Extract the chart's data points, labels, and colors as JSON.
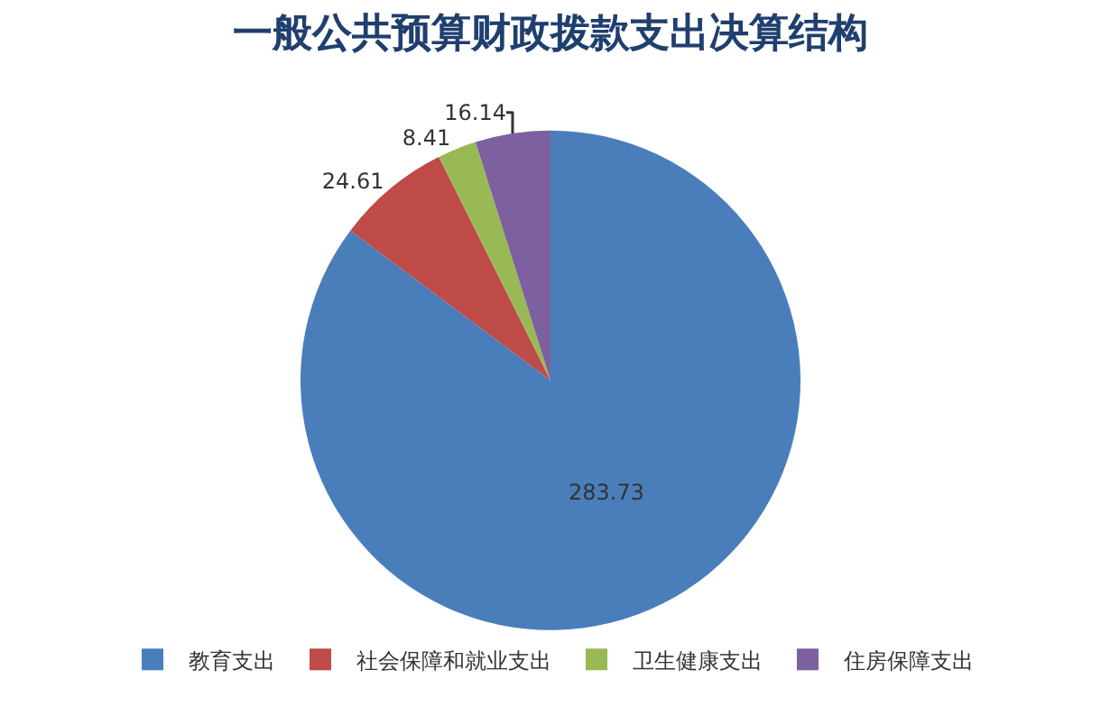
{
  "chart_data": {
    "type": "pie",
    "title": "一般公共预算财政拨款支出决算结构",
    "categories": [
      "教育支出",
      "社会保障和就业支出",
      "卫生健康支出",
      "住房保障支出"
    ],
    "values": [
      283.73,
      24.61,
      8.41,
      16.14
    ],
    "colors": [
      "#4a7ebb",
      "#be4b48",
      "#98b954",
      "#7d60a0"
    ],
    "data_labels": true,
    "legend": "bottom"
  }
}
